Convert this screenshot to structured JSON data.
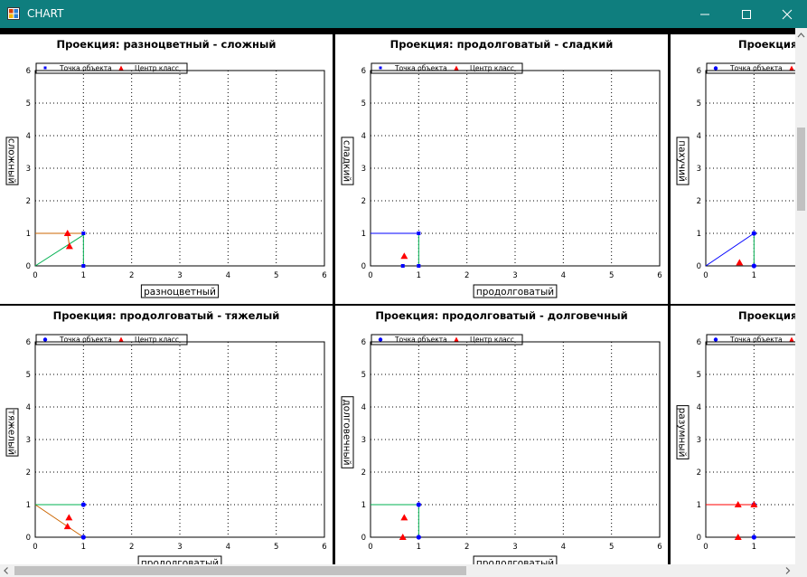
{
  "window": {
    "title": "CHART",
    "icon": "chart-app-icon",
    "controls": [
      "minimize-icon",
      "maximize-icon",
      "close-icon"
    ],
    "titlebar_color": "#0f7e7e"
  },
  "colors": {
    "point": "#0000ff",
    "center": "#ff0000",
    "grid": "#000000",
    "line_to_point": "#00b050",
    "line_to_center": "#cc6600"
  },
  "chart_data": [
    {
      "type": "scatter",
      "title": "Проекция: разноцветный - сложный",
      "xlabel": "разноцветный",
      "ylabel": "сложный",
      "xlim": [
        0,
        6
      ],
      "ylim": [
        0,
        6
      ],
      "xticks": [
        "0",
        "1",
        "2",
        "3",
        "4",
        "5",
        "6"
      ],
      "yticks": [
        "0",
        "1",
        "2",
        "3",
        "4",
        "5",
        "6"
      ],
      "grid": true,
      "legend": [
        "Точка объекта",
        "Центр класс"
      ],
      "legend_position": "top",
      "series": [
        {
          "name": "Точка объекта",
          "marker": "square",
          "points": [
            [
              1,
              1
            ],
            [
              1,
              0
            ]
          ]
        },
        {
          "name": "Центр класс",
          "marker": "triangle",
          "points": [
            [
              0.67,
              1
            ],
            [
              0.71,
              0.6
            ]
          ]
        }
      ],
      "segments": [
        {
          "color": "green",
          "points": [
            [
              0,
              0
            ],
            [
              1,
              0.95
            ]
          ]
        },
        {
          "color": "green",
          "points": [
            [
              1,
              0
            ],
            [
              1,
              1
            ]
          ]
        },
        {
          "color": "orange",
          "points": [
            [
              0,
              1
            ],
            [
              1,
              1
            ]
          ]
        },
        {
          "color": "orange",
          "points": [
            [
              0.67,
              1
            ],
            [
              0.71,
              0.6
            ]
          ]
        }
      ]
    },
    {
      "type": "scatter",
      "title": "Проекция: продолговатый - сладкий",
      "xlabel": "продолговатый",
      "ylabel": "сладкий",
      "xlim": [
        0,
        6
      ],
      "ylim": [
        0,
        6
      ],
      "xticks": [
        "0",
        "1",
        "2",
        "3",
        "4",
        "5",
        "6"
      ],
      "yticks": [
        "0",
        "1",
        "2",
        "3",
        "4",
        "5",
        "6"
      ],
      "grid": true,
      "legend": [
        "Точка объекта",
        "Центр класс"
      ],
      "legend_position": "top",
      "series": [
        {
          "name": "Точка объекта",
          "marker": "square",
          "points": [
            [
              1,
              1
            ],
            [
              0.67,
              0
            ],
            [
              1,
              0
            ]
          ]
        },
        {
          "name": "Центр класс",
          "marker": "triangle",
          "points": [
            [
              0.7,
              0.3
            ]
          ]
        }
      ],
      "segments": [
        {
          "color": "blue",
          "points": [
            [
              0,
              1
            ],
            [
              1,
              1
            ]
          ]
        },
        {
          "color": "green",
          "points": [
            [
              1,
              0
            ],
            [
              1,
              1
            ]
          ]
        }
      ]
    },
    {
      "type": "scatter",
      "title": "Проекция: ",
      "xlabel": "",
      "ylabel": "пахучий",
      "xlim": [
        0,
        6
      ],
      "ylim": [
        0,
        6
      ],
      "xticks": [
        "0",
        "1"
      ],
      "yticks": [
        "0",
        "1",
        "2",
        "3",
        "4",
        "5",
        "6"
      ],
      "grid": true,
      "legend": [
        "Точка объекта",
        "Центр класс"
      ],
      "legend_position": "top",
      "series": [
        {
          "name": "Точка объекта",
          "marker": "circle",
          "points": [
            [
              1,
              1
            ],
            [
              1,
              0
            ]
          ]
        },
        {
          "name": "Центр класс",
          "marker": "triangle",
          "points": [
            [
              0.7,
              0.1
            ]
          ]
        }
      ],
      "segments": [
        {
          "color": "blue",
          "points": [
            [
              0,
              0
            ],
            [
              1,
              1
            ]
          ]
        },
        {
          "color": "green",
          "points": [
            [
              1,
              0
            ],
            [
              1,
              1
            ]
          ]
        }
      ]
    },
    {
      "type": "scatter",
      "title": "Проекция: продолговатый - тяжелый",
      "xlabel": "продолговатый",
      "ylabel": "тяжелый",
      "xlim": [
        0,
        6
      ],
      "ylim": [
        0,
        6
      ],
      "xticks": [
        "0",
        "1",
        "2",
        "3",
        "4",
        "5",
        "6"
      ],
      "yticks": [
        "0",
        "1",
        "2",
        "3",
        "4",
        "5",
        "6"
      ],
      "grid": true,
      "legend": [
        "Точка объекта",
        "Центр класс"
      ],
      "legend_position": "top",
      "series": [
        {
          "name": "Точка объекта",
          "marker": "circle",
          "points": [
            [
              1,
              1
            ],
            [
              1,
              0
            ]
          ]
        },
        {
          "name": "Центр класс",
          "marker": "triangle",
          "points": [
            [
              0.7,
              0.6
            ],
            [
              0.67,
              0.33
            ]
          ]
        }
      ],
      "segments": [
        {
          "color": "orange",
          "points": [
            [
              0,
              1
            ],
            [
              0.67,
              0.33
            ]
          ]
        },
        {
          "color": "orange",
          "points": [
            [
              0.67,
              0.33
            ],
            [
              1,
              0
            ]
          ]
        },
        {
          "color": "green",
          "points": [
            [
              0,
              1
            ],
            [
              1,
              1
            ]
          ]
        }
      ]
    },
    {
      "type": "scatter",
      "title": "Проекция: продолговатый - долговечный",
      "xlabel": "продолговатый",
      "ylabel": "долговечный",
      "xlim": [
        0,
        6
      ],
      "ylim": [
        0,
        6
      ],
      "xticks": [
        "0",
        "1",
        "2",
        "3",
        "4",
        "5",
        "6"
      ],
      "yticks": [
        "0",
        "1",
        "2",
        "3",
        "4",
        "5",
        "6"
      ],
      "grid": true,
      "legend": [
        "Точка объекта",
        "Центр класс"
      ],
      "legend_position": "top",
      "series": [
        {
          "name": "Точка объекта",
          "marker": "circle",
          "points": [
            [
              1,
              1
            ],
            [
              1,
              0
            ]
          ]
        },
        {
          "name": "Центр класс",
          "marker": "triangle",
          "points": [
            [
              0.7,
              0.6
            ],
            [
              0.67,
              0
            ]
          ]
        }
      ],
      "segments": [
        {
          "color": "green",
          "points": [
            [
              0,
              1
            ],
            [
              1,
              1
            ]
          ]
        },
        {
          "color": "green",
          "points": [
            [
              1,
              0
            ],
            [
              1,
              1
            ]
          ]
        }
      ]
    },
    {
      "type": "scatter",
      "title": "Проекция: ",
      "xlabel": "",
      "ylabel": "разумный",
      "xlim": [
        0,
        6
      ],
      "ylim": [
        0,
        6
      ],
      "xticks": [
        "0",
        "1"
      ],
      "yticks": [
        "0",
        "1",
        "2",
        "3",
        "4",
        "5",
        "6"
      ],
      "grid": true,
      "legend": [
        "Точка объекта",
        "Центр класс"
      ],
      "legend_position": "top",
      "series": [
        {
          "name": "Точка объекта",
          "marker": "circle",
          "points": [
            [
              1,
              1
            ],
            [
              1,
              0
            ]
          ]
        },
        {
          "name": "Центр класс",
          "marker": "triangle",
          "points": [
            [
              0.67,
              1
            ],
            [
              1,
              1
            ],
            [
              0.67,
              0
            ]
          ]
        }
      ],
      "segments": [
        {
          "color": "red",
          "points": [
            [
              0,
              1
            ],
            [
              1,
              1
            ]
          ]
        }
      ]
    }
  ]
}
